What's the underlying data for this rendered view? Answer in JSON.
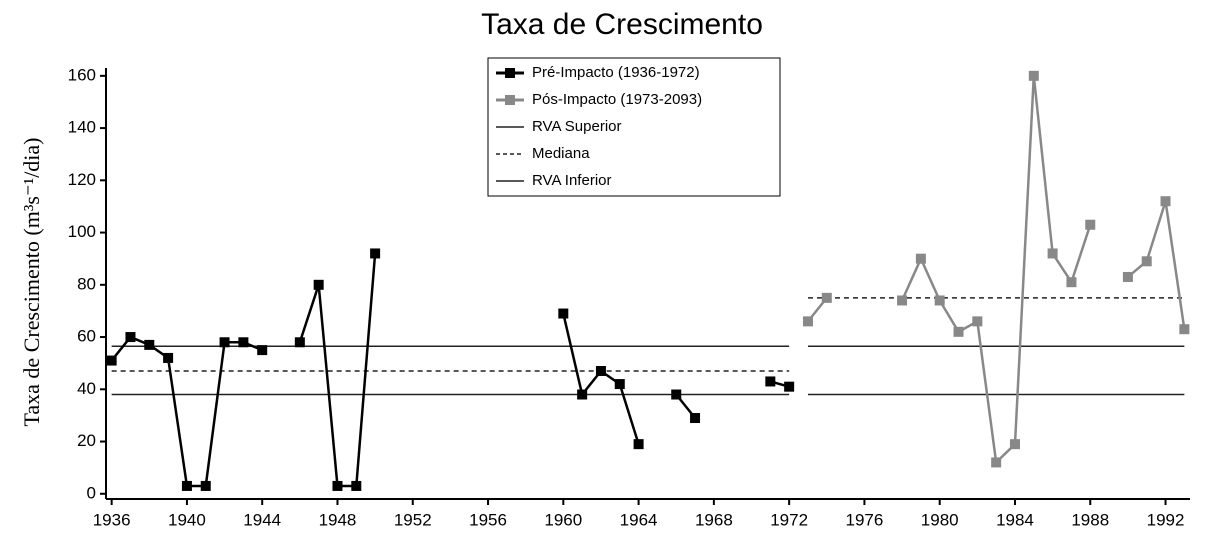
{
  "chart_data": {
    "type": "line",
    "title": "Taxa de Crescimento",
    "y_label": "Taxa de Crescimento (m³s⁻¹/dia)",
    "x": [
      1936,
      1937,
      1938,
      1939,
      1940,
      1941,
      1942,
      1943,
      1944,
      1945,
      1946,
      1947,
      1948,
      1949,
      1950,
      1951,
      1952,
      1953,
      1954,
      1955,
      1956,
      1957,
      1958,
      1959,
      1960,
      1961,
      1962,
      1963,
      1964,
      1965,
      1966,
      1967,
      1968,
      1969,
      1970,
      1971,
      1972,
      1973,
      1974,
      1975,
      1976,
      1977,
      1978,
      1979,
      1980,
      1981,
      1982,
      1983,
      1984,
      1985,
      1986,
      1987,
      1988,
      1989,
      1990,
      1991,
      1992,
      1993
    ],
    "series": [
      {
        "name": "Pré-Impacto (1936-1972)",
        "color": "#000000",
        "values": [
          51,
          60,
          57,
          52,
          3,
          3,
          58,
          58,
          55,
          null,
          58,
          80,
          3,
          3,
          92,
          null,
          null,
          null,
          null,
          null,
          null,
          null,
          null,
          null,
          69,
          38,
          47,
          42,
          19,
          null,
          38,
          29,
          null,
          null,
          null,
          43,
          41,
          null,
          null,
          null,
          null,
          null,
          null,
          null,
          null,
          null,
          null,
          null,
          null,
          null,
          null,
          null,
          null,
          null,
          null,
          null,
          null,
          null
        ]
      },
      {
        "name": "Pós-Impacto (1973-2093)",
        "color": "#888888",
        "values": [
          null,
          null,
          null,
          null,
          null,
          null,
          null,
          null,
          null,
          null,
          null,
          null,
          null,
          null,
          null,
          null,
          null,
          null,
          null,
          null,
          null,
          null,
          null,
          null,
          null,
          null,
          null,
          null,
          null,
          null,
          null,
          null,
          null,
          null,
          null,
          null,
          null,
          66,
          75,
          null,
          null,
          null,
          74,
          90,
          74,
          62,
          66,
          12,
          19,
          160,
          92,
          81,
          103,
          null,
          83,
          89,
          112,
          63
        ]
      }
    ],
    "reference_lines": [
      {
        "name": "RVA Superior",
        "color": "#222222",
        "dashed": false,
        "segments": [
          {
            "x": [
              1936,
              1972
            ],
            "value": 56.5
          },
          {
            "x": [
              1973,
              1993
            ],
            "value": 56.5
          }
        ]
      },
      {
        "name": "Mediana",
        "color": "#222222",
        "dashed": true,
        "segments": [
          {
            "x": [
              1936,
              1972
            ],
            "value": 47
          },
          {
            "x": [
              1973,
              1993
            ],
            "value": 75
          }
        ]
      },
      {
        "name": "RVA Inferior",
        "color": "#222222",
        "dashed": false,
        "segments": [
          {
            "x": [
              1936,
              1972
            ],
            "value": 38
          },
          {
            "x": [
              1973,
              1993
            ],
            "value": 38
          }
        ]
      }
    ],
    "xlim": [
      1935.7,
      1993.3
    ],
    "xticks": [
      1936,
      1940,
      1944,
      1948,
      1952,
      1956,
      1960,
      1964,
      1968,
      1972,
      1976,
      1980,
      1984,
      1988,
      1992
    ],
    "ylim": [
      -2,
      163
    ],
    "yticks": [
      0,
      20,
      40,
      60,
      80,
      100,
      120,
      140,
      160
    ],
    "legend": "upper center"
  }
}
